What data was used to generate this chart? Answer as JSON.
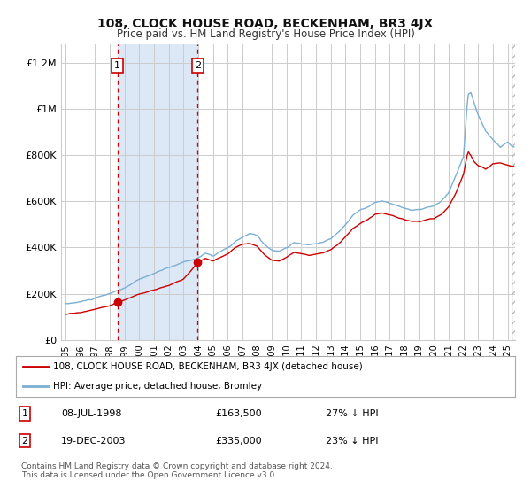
{
  "title": "108, CLOCK HOUSE ROAD, BECKENHAM, BR3 4JX",
  "subtitle": "Price paid vs. HM Land Registry's House Price Index (HPI)",
  "ylabel_ticks": [
    "£0",
    "£200K",
    "£400K",
    "£600K",
    "£800K",
    "£1M",
    "£1.2M"
  ],
  "ytick_vals": [
    0,
    200000,
    400000,
    600000,
    800000,
    1000000,
    1200000
  ],
  "ylim": [
    0,
    1280000
  ],
  "xlim_start": 1995.0,
  "xlim_end": 2025.5,
  "transaction1": {
    "date_str": "08-JUL-1998",
    "year": 1998.52,
    "price": 163500,
    "label": "1"
  },
  "transaction2": {
    "date_str": "19-DEC-2003",
    "year": 2003.96,
    "price": 335000,
    "label": "2"
  },
  "legend_line1": "108, CLOCK HOUSE ROAD, BECKENHAM, BR3 4JX (detached house)",
  "legend_line2": "HPI: Average price, detached house, Bromley",
  "table_row1": [
    "1",
    "08-JUL-1998",
    "£163,500",
    "27% ↓ HPI"
  ],
  "table_row2": [
    "2",
    "19-DEC-2003",
    "£335,000",
    "23% ↓ HPI"
  ],
  "footer": "Contains HM Land Registry data © Crown copyright and database right 2024.\nThis data is licensed under the Open Government Licence v3.0.",
  "price_color": "#cc0000",
  "hpi_color": "#7bafd4",
  "shade_color": "#dce8f5",
  "background_color": "#ffffff",
  "grid_color": "#cccccc"
}
